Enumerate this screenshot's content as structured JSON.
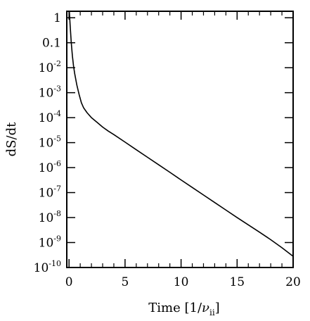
{
  "chart_data": {
    "type": "line",
    "title": "",
    "xlabel": "Time [1/ν_ii]",
    "xlabel_parts": {
      "main": "Time [1/",
      "nu": "ν",
      "sub": "ii",
      "close": "]"
    },
    "ylabel": "dS/dt",
    "xlim": [
      -0.2,
      20
    ],
    "ylim_log10": [
      -10,
      0.26
    ],
    "y_scale": "log",
    "grid": false,
    "legend": "none",
    "x_ticks": [
      {
        "value": 0,
        "label": "0"
      },
      {
        "value": 5,
        "label": "5"
      },
      {
        "value": 10,
        "label": "10"
      },
      {
        "value": 15,
        "label": "15"
      },
      {
        "value": 20,
        "label": "20"
      }
    ],
    "y_ticks": [
      {
        "exp": 0,
        "base": "1",
        "sup": ""
      },
      {
        "exp": -1,
        "base": "0.1",
        "sup": ""
      },
      {
        "exp": -2,
        "base": "10",
        "sup": "-2"
      },
      {
        "exp": -3,
        "base": "10",
        "sup": "-3"
      },
      {
        "exp": -4,
        "base": "10",
        "sup": "-4"
      },
      {
        "exp": -5,
        "base": "10",
        "sup": "-5"
      },
      {
        "exp": -6,
        "base": "10",
        "sup": "-6"
      },
      {
        "exp": -7,
        "base": "10",
        "sup": "-7"
      },
      {
        "exp": -8,
        "base": "10",
        "sup": "-8"
      },
      {
        "exp": -9,
        "base": "10",
        "sup": "-9"
      },
      {
        "exp": -10,
        "base": "10",
        "sup": "-10"
      }
    ],
    "series": [
      {
        "color": "#000000",
        "x": [
          0.0,
          0.1,
          0.2,
          0.3,
          0.4,
          0.5,
          0.7,
          0.9,
          1.1,
          1.3,
          1.6,
          2.0,
          2.5,
          3.0,
          3.5,
          4.0,
          5.0,
          6.0,
          7.0,
          8.0,
          9.0,
          10.0,
          11.0,
          12.0,
          13.0,
          14.0,
          15.0,
          16.0,
          17.0,
          18.0,
          19.0,
          20.0
        ],
        "y": [
          3.0,
          0.5,
          0.1,
          0.03,
          0.012,
          0.006,
          0.002,
          0.00085,
          0.0004,
          0.00025,
          0.00016,
          0.0001,
          6.5e-05,
          4.2e-05,
          2.9e-05,
          2.1e-05,
          1.05e-05,
          5.2e-06,
          2.6e-06,
          1.3e-06,
          6.5e-07,
          3.2e-07,
          1.6e-07,
          8e-08,
          4e-08,
          2e-08,
          1e-08,
          5.1e-09,
          2.6e-09,
          1.3e-09,
          6.2e-10,
          2.8e-10
        ]
      }
    ]
  }
}
